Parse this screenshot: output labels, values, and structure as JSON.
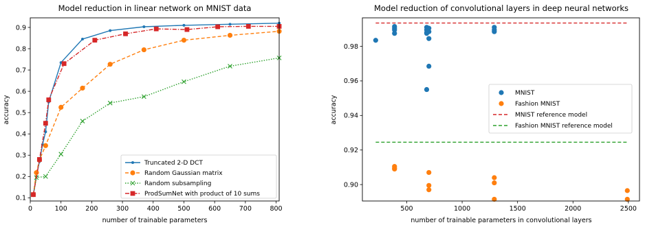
{
  "chart_data": [
    {
      "type": "line",
      "title": "Model reduction in linear network on MNIST data",
      "xlabel": "number of trainable parameters",
      "ylabel": "accuracy",
      "xlim": [
        0,
        810
      ],
      "ylim": [
        0.085,
        0.945
      ],
      "xticks": [
        "0",
        "100",
        "200",
        "300",
        "400",
        "500",
        "600",
        "700",
        "800"
      ],
      "yticks": [
        "0.1",
        "0.2",
        "0.3",
        "0.4",
        "0.5",
        "0.6",
        "0.7",
        "0.8",
        "0.9"
      ],
      "grid": false,
      "legend_position": "lower-right",
      "series": [
        {
          "name": "Truncated 2-D DCT",
          "color": "#1f77b4",
          "linestyle": "solid",
          "marker": "dot",
          "x": [
            10,
            20,
            30,
            40,
            50,
            60,
            100,
            170,
            260,
            370,
            500,
            650,
            810
          ],
          "y": [
            0.115,
            0.2,
            0.27,
            0.35,
            0.41,
            0.55,
            0.735,
            0.845,
            0.885,
            0.903,
            0.91,
            0.915,
            0.92
          ]
        },
        {
          "name": "Random Gaussian matrix",
          "color": "#ff7f0e",
          "linestyle": "dashed",
          "marker": "circle",
          "x": [
            10,
            20,
            30,
            50,
            100,
            170,
            260,
            370,
            500,
            650,
            810
          ],
          "y": [
            0.115,
            0.218,
            0.278,
            0.345,
            0.525,
            0.615,
            0.727,
            0.795,
            0.84,
            0.863,
            0.882
          ]
        },
        {
          "name": "Random subsampling",
          "color": "#2ca02c",
          "linestyle": "dotted",
          "marker": "x",
          "x": [
            10,
            20,
            50,
            100,
            170,
            260,
            370,
            500,
            650,
            810
          ],
          "y": [
            0.115,
            0.195,
            0.2,
            0.305,
            0.46,
            0.545,
            0.575,
            0.645,
            0.718,
            0.757
          ]
        },
        {
          "name": "ProdSumNet with product of 10 sums",
          "color": "#d62728",
          "linestyle": "dashdot",
          "marker": "square",
          "x": [
            10,
            30,
            50,
            60,
            110,
            210,
            310,
            410,
            510,
            610,
            710,
            810
          ],
          "y": [
            0.115,
            0.28,
            0.45,
            0.56,
            0.73,
            0.84,
            0.87,
            0.893,
            0.89,
            0.903,
            0.905,
            0.905
          ]
        }
      ]
    },
    {
      "type": "scatter",
      "title": "Model reduction of convolutional layers in deep neural networks",
      "xlabel": "number of trainable parameters in convolutional layers",
      "ylabel": "accuracy",
      "xlim": [
        100,
        2600
      ],
      "ylim": [
        0.8905,
        0.9965
      ],
      "xticks": [
        "500",
        "1000",
        "1500",
        "2000",
        "2500"
      ],
      "yticks": [
        "0.90",
        "0.92",
        "0.94",
        "0.96",
        "0.98"
      ],
      "grid": false,
      "legend_position": "center-right",
      "series": [
        {
          "name": "MNIST",
          "color": "#1f77b4",
          "marker": "circle",
          "points": [
            [
              220,
              0.9835
            ],
            [
              390,
              0.9915
            ],
            [
              390,
              0.9905
            ],
            [
              390,
              0.9895
            ],
            [
              390,
              0.9875
            ],
            [
              680,
              0.991
            ],
            [
              680,
              0.9895
            ],
            [
              680,
              0.988
            ],
            [
              680,
              0.9875
            ],
            [
              680,
              0.955
            ],
            [
              700,
              0.9905
            ],
            [
              700,
              0.9885
            ],
            [
              700,
              0.9845
            ],
            [
              700,
              0.9685
            ],
            [
              1290,
              0.991
            ],
            [
              1290,
              0.9895
            ],
            [
              1290,
              0.9885
            ]
          ]
        },
        {
          "name": "Fashion MNIST",
          "color": "#ff7f0e",
          "marker": "circle",
          "points": [
            [
              390,
              0.9105
            ],
            [
              390,
              0.9095
            ],
            [
              390,
              0.909
            ],
            [
              700,
              0.907
            ],
            [
              700,
              0.8995
            ],
            [
              700,
              0.897
            ],
            [
              1290,
              0.904
            ],
            [
              1290,
              0.901
            ],
            [
              1290,
              0.8915
            ],
            [
              2490,
              0.8965
            ],
            [
              2490,
              0.8915
            ]
          ]
        }
      ],
      "reference_lines": [
        {
          "name": "MNIST reference model",
          "color": "#d62728",
          "linestyle": "dashed",
          "y": 0.9935,
          "x_range": [
            220,
            2500
          ]
        },
        {
          "name": "Fashion MNIST reference model",
          "color": "#2ca02c",
          "linestyle": "dashed",
          "y": 0.9245,
          "x_range": [
            220,
            2500
          ]
        }
      ]
    }
  ]
}
